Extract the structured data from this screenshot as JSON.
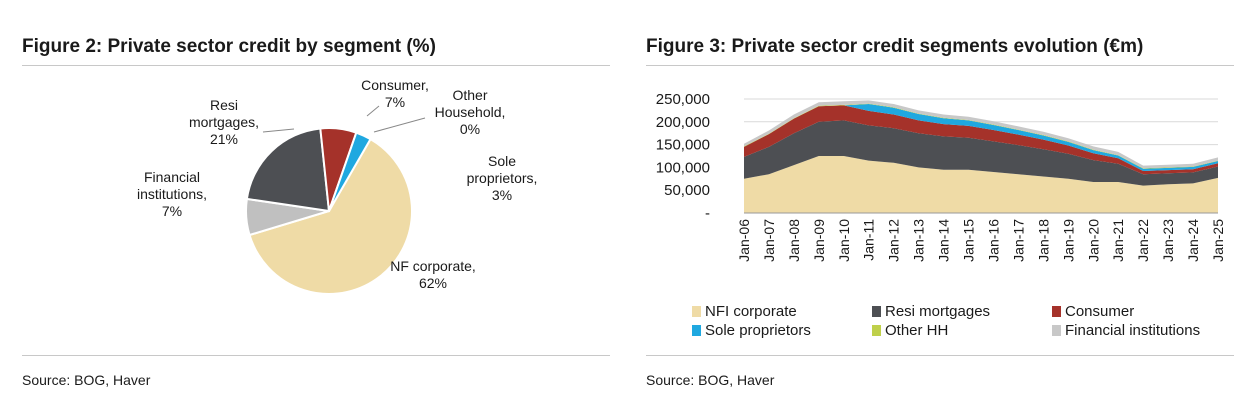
{
  "figure2": {
    "title": "Figure 2: Private sector credit by segment (%)",
    "source": "Source: BOG, Haver"
  },
  "figure3": {
    "title": "Figure 3: Private sector credit segments evolution (€m)",
    "source": "Source: BOG, Haver",
    "legend": [
      {
        "label": "NFI corporate",
        "color": "#efdba6"
      },
      {
        "label": "Resi mortgages",
        "color": "#4d4f53"
      },
      {
        "label": "Consumer",
        "color": "#a5322a"
      },
      {
        "label": "Sole proprietors",
        "color": "#1fa8e0"
      },
      {
        "label": "Other HH",
        "color": "#bfd04a"
      },
      {
        "label": "Financial institutions",
        "color": "#c8c8c8"
      }
    ]
  },
  "chart_data": [
    {
      "type": "pie",
      "title": "Figure 2: Private sector credit by segment (%)",
      "slices": [
        {
          "name": "NF corporate",
          "value": 62,
          "color": "#efdba6",
          "label_lines": [
            "NF corporate,",
            "62%"
          ]
        },
        {
          "name": "Financial institutions",
          "value": 7,
          "color": "#c0c0c0",
          "label_lines": [
            "Financial",
            "institutions,",
            "7%"
          ]
        },
        {
          "name": "Resi mortgages",
          "value": 21,
          "color": "#4d4f53",
          "label_lines": [
            "Resi",
            "mortgages,",
            "21%"
          ]
        },
        {
          "name": "Consumer",
          "value": 7,
          "color": "#a5322a",
          "label_lines": [
            "Consumer,",
            "7%"
          ]
        },
        {
          "name": "Other Household",
          "value": 0,
          "color": "#bfd04a",
          "label_lines": [
            "Other",
            "Household,",
            "0%"
          ]
        },
        {
          "name": "Sole proprietors",
          "value": 3,
          "color": "#1fa8e0",
          "label_lines": [
            "Sole",
            "proprietors,",
            "3%"
          ]
        }
      ]
    },
    {
      "type": "area",
      "stacked": true,
      "title": "Figure 3: Private sector credit segments evolution (€m)",
      "ylim": [
        0,
        250000
      ],
      "y_ticks": [
        "-",
        "50,000",
        "100,000",
        "150,000",
        "200,000",
        "250,000"
      ],
      "x_ticks": [
        "Jan-06",
        "Jan-07",
        "Jan-08",
        "Jan-09",
        "Jan-10",
        "Jan-11",
        "Jan-12",
        "Jan-13",
        "Jan-14",
        "Jan-15",
        "Jan-16",
        "Jan-17",
        "Jan-18",
        "Jan-19",
        "Jan-20",
        "Jan-21",
        "Jan-22",
        "Jan-23",
        "Jan-24",
        "Jan-25"
      ],
      "x": [
        2006,
        2007,
        2008,
        2009,
        2010,
        2011,
        2012,
        2013,
        2014,
        2015,
        2016,
        2017,
        2018,
        2019,
        2020,
        2021,
        2022,
        2023,
        2024,
        2025
      ],
      "series": [
        {
          "name": "NFI corporate",
          "color": "#efdba6",
          "values": [
            75000,
            85000,
            105000,
            125000,
            125000,
            115000,
            110000,
            100000,
            95000,
            95000,
            90000,
            85000,
            80000,
            75000,
            68000,
            68000,
            60000,
            63000,
            65000,
            77000
          ]
        },
        {
          "name": "Resi mortgages",
          "color": "#4d4f53",
          "values": [
            48000,
            60000,
            70000,
            75000,
            78000,
            77000,
            76000,
            75000,
            73000,
            70000,
            67000,
            64000,
            60000,
            55000,
            48000,
            40000,
            25000,
            24000,
            24000,
            25000
          ]
        },
        {
          "name": "Consumer",
          "color": "#a5322a",
          "values": [
            22000,
            28000,
            32000,
            34000,
            33000,
            32000,
            30000,
            28000,
            27000,
            26000,
            25000,
            23000,
            21000,
            18000,
            15000,
            12000,
            7000,
            7000,
            7000,
            7000
          ]
        },
        {
          "name": "Sole proprietors",
          "color": "#1fa8e0",
          "values": [
            0,
            0,
            0,
            0,
            0,
            15000,
            15000,
            14000,
            13000,
            12000,
            11000,
            10000,
            9000,
            8000,
            7000,
            6000,
            5000,
            5000,
            5000,
            5000
          ]
        },
        {
          "name": "Other HH",
          "color": "#bfd04a",
          "values": [
            1000,
            1000,
            1000,
            1000,
            1000,
            1000,
            1000,
            1000,
            1000,
            1000,
            1000,
            1000,
            1000,
            1000,
            1000,
            1000,
            1000,
            1000,
            1000,
            1000
          ]
        },
        {
          "name": "Financial institutions",
          "color": "#c8c8c8",
          "values": [
            6000,
            7000,
            8000,
            8000,
            8000,
            7000,
            7000,
            7000,
            7000,
            7000,
            7000,
            7000,
            7000,
            7000,
            7000,
            7000,
            6000,
            6000,
            6000,
            7000
          ]
        }
      ]
    }
  ]
}
